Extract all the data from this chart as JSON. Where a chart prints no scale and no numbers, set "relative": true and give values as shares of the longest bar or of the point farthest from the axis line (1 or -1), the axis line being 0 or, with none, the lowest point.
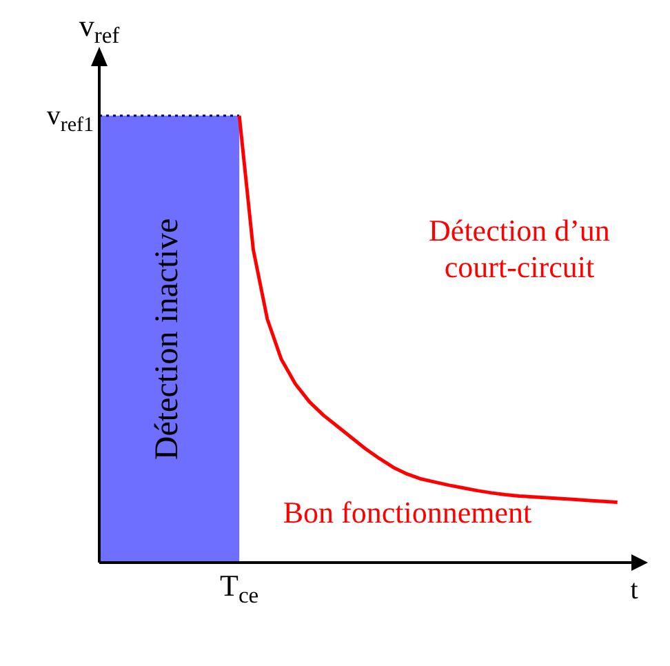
{
  "chart_data": {
    "type": "line",
    "relative": true,
    "xlabel": "t",
    "ylabel": "v$_{ref}$",
    "categories": [
      null,
      null,
      null,
      null,
      null,
      null,
      null,
      null,
      null,
      null,
      null,
      null,
      null,
      null,
      null,
      null,
      null,
      null,
      null,
      null,
      null,
      null,
      null,
      null,
      null,
      null,
      null,
      null,
      null,
      null,
      null,
      null,
      null,
      null,
      null,
      null,
      null,
      null,
      null
    ],
    "series": [
      {
        "color": "#ff0000",
        "values": [
          null,
          null,
          null,
          null,
          null,
          null,
          null,
          null,
          null,
          null,
          1.0,
          0.7,
          0.545,
          0.455,
          0.4,
          0.36,
          0.33,
          0.305,
          0.28,
          0.255,
          0.233,
          0.213,
          0.198,
          0.187,
          0.18,
          0.173,
          0.167,
          0.161,
          0.156,
          0.152,
          0.149,
          0.147,
          0.145,
          0.143,
          0.141,
          0.139,
          0.137,
          0.135,
          null
        ]
      }
    ],
    "annotations": [
      "Détection inactive",
      "Détection d’un\ncourt-circuit",
      "Bon fonctionnement",
      "T$_{ce}$",
      "v$_{ref1}$"
    ],
    "marker": "none",
    "line_style": "solid",
    "grid": false,
    "legend": false
  }
}
